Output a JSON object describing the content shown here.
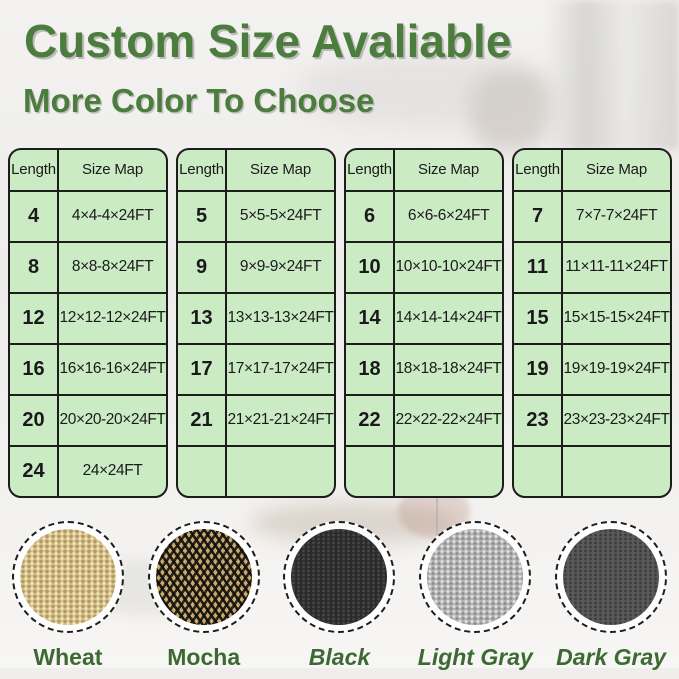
{
  "header": {
    "title": "Custom Size Avaliable",
    "subtitle": "More Color To Choose"
  },
  "tables": [
    {
      "columns": [
        "Length",
        "Size Map"
      ],
      "rows": [
        [
          "4",
          "4×4-4×24FT"
        ],
        [
          "8",
          "8×8-8×24FT"
        ],
        [
          "12",
          "12×12-12×24FT"
        ],
        [
          "16",
          "16×16-16×24FT"
        ],
        [
          "20",
          "20×20-20×24FT"
        ],
        [
          "24",
          "24×24FT"
        ]
      ]
    },
    {
      "columns": [
        "Length",
        "Size Map"
      ],
      "rows": [
        [
          "5",
          "5×5-5×24FT"
        ],
        [
          "9",
          "9×9-9×24FT"
        ],
        [
          "13",
          "13×13-13×24FT"
        ],
        [
          "17",
          "17×17-17×24FT"
        ],
        [
          "21",
          "21×21-21×24FT"
        ],
        [
          "",
          ""
        ]
      ]
    },
    {
      "columns": [
        "Length",
        "Size Map"
      ],
      "rows": [
        [
          "6",
          "6×6-6×24FT"
        ],
        [
          "10",
          "10×10-10×24FT"
        ],
        [
          "14",
          "14×14-14×24FT"
        ],
        [
          "18",
          "18×18-18×24FT"
        ],
        [
          "22",
          "22×22-22×24FT"
        ],
        [
          "",
          ""
        ]
      ]
    },
    {
      "columns": [
        "Length",
        "Size Map"
      ],
      "rows": [
        [
          "7",
          "7×7-7×24FT"
        ],
        [
          "11",
          "11×11-11×24FT"
        ],
        [
          "15",
          "15×15-15×24FT"
        ],
        [
          "19",
          "19×19-19×24FT"
        ],
        [
          "23",
          "23×23-23×24FT"
        ],
        [
          "",
          ""
        ]
      ]
    }
  ],
  "colors": {
    "swatches": [
      {
        "id": "wheat",
        "label": "Wheat",
        "italic": false,
        "fabric_color": "#dcc68f"
      },
      {
        "id": "mocha",
        "label": "Mocha",
        "italic": false,
        "fabric_color": "#c9a96c"
      },
      {
        "id": "black",
        "label": "Black",
        "italic": true,
        "fabric_color": "#2b2b2b"
      },
      {
        "id": "light-gray",
        "label": "Light Gray",
        "italic": true,
        "fabric_color": "#b2b2b2"
      },
      {
        "id": "dark-gray",
        "label": "Dark Gray",
        "italic": true,
        "fabric_color": "#5a5a5a"
      }
    ]
  },
  "palette": {
    "title_green": "#4c7c3e",
    "swatch_label_green": "#3c6a32",
    "table_bg": "#cbebc5",
    "table_border": "#1c1c1c",
    "text_dark": "#1a1a1a",
    "wheat": "#dcc68f",
    "mocha_tan": "#c9a96c",
    "black_fabric": "#2b2b2b",
    "light_gray_fabric": "#b2b2b2",
    "dark_gray_fabric": "#5a5a5a"
  }
}
